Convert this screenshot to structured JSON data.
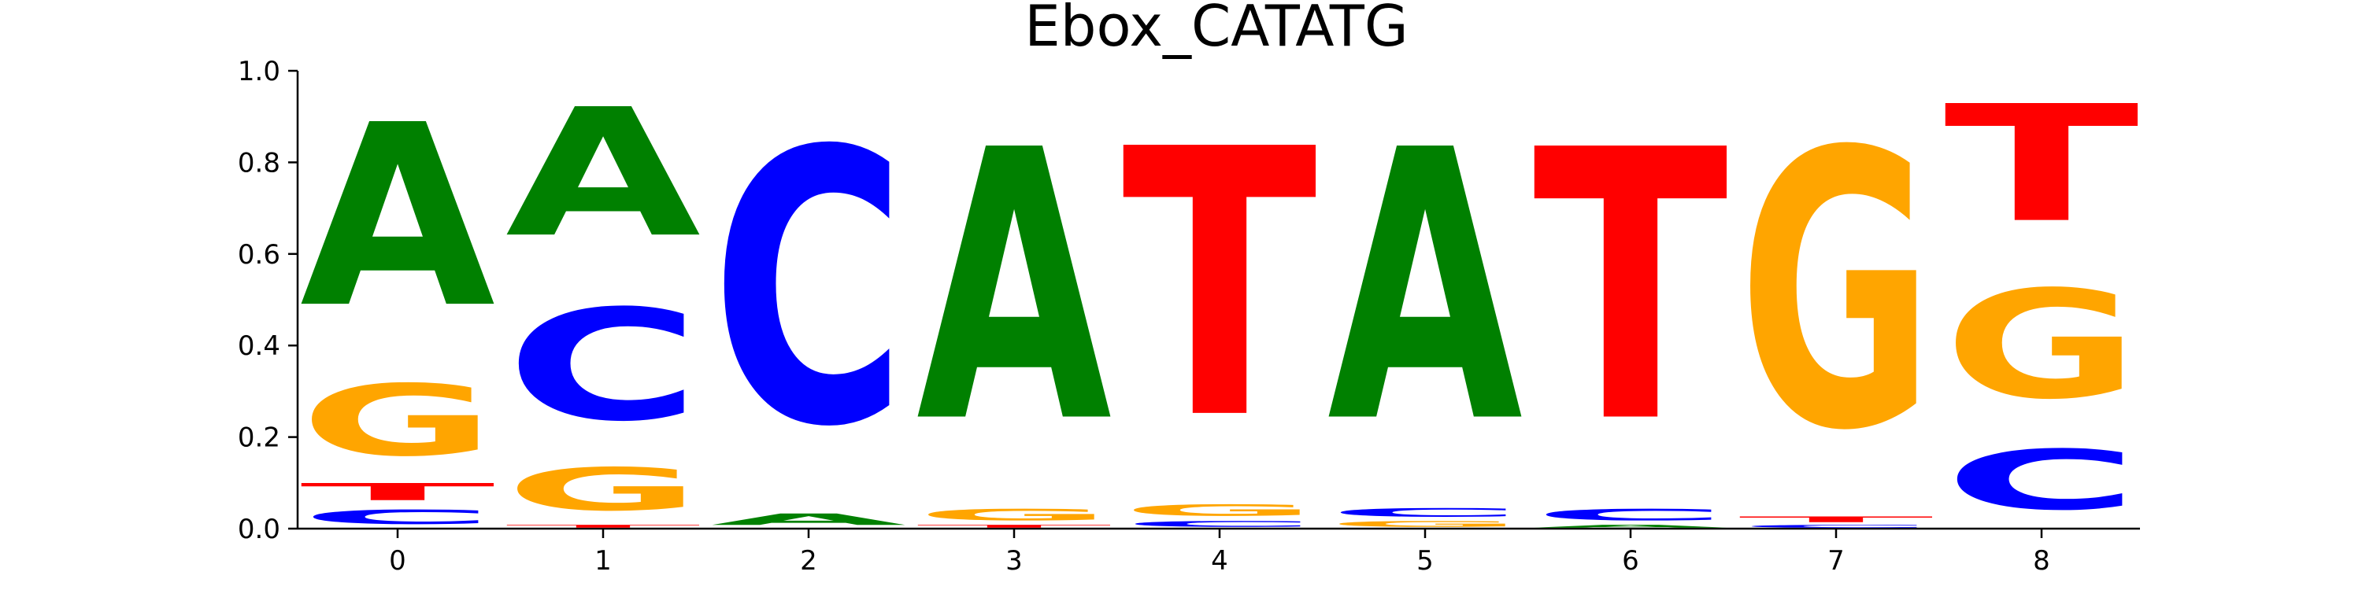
{
  "chart_data": {
    "type": "sequence-logo",
    "title": "Ebox_CATATG",
    "ylim": [
      0,
      1
    ],
    "yticks": [
      "0.0",
      "0.2",
      "0.4",
      "0.6",
      "0.8",
      "1.0"
    ],
    "xticks": [
      "0",
      "1",
      "2",
      "3",
      "4",
      "5",
      "6",
      "7",
      "8"
    ],
    "colors": {
      "A": "#008000",
      "C": "#0000ff",
      "G": "#ffa500",
      "T": "#ff0000"
    },
    "positions": [
      {
        "position": 0,
        "stack": [
          {
            "letter": "C",
            "value": 0.05
          },
          {
            "letter": "T",
            "value": 0.06
          },
          {
            "letter": "G",
            "value": 0.25
          },
          {
            "letter": "A",
            "value": 0.64
          }
        ]
      },
      {
        "position": 1,
        "stack": [
          {
            "letter": "T",
            "value": 0.01
          },
          {
            "letter": "G",
            "value": 0.15
          },
          {
            "letter": "C",
            "value": 0.39
          },
          {
            "letter": "A",
            "value": 0.45
          }
        ]
      },
      {
        "position": 2,
        "stack": [
          {
            "letter": "A",
            "value": 0.04
          },
          {
            "letter": "C",
            "value": 0.96
          }
        ]
      },
      {
        "position": 3,
        "stack": [
          {
            "letter": "T",
            "value": 0.01
          },
          {
            "letter": "G",
            "value": 0.04
          },
          {
            "letter": "A",
            "value": 0.95
          }
        ]
      },
      {
        "position": 4,
        "stack": [
          {
            "letter": "C",
            "value": 0.02
          },
          {
            "letter": "G",
            "value": 0.04
          },
          {
            "letter": "T",
            "value": 0.94
          }
        ]
      },
      {
        "position": 5,
        "stack": [
          {
            "letter": "G",
            "value": 0.02
          },
          {
            "letter": "C",
            "value": 0.03
          },
          {
            "letter": "A",
            "value": 0.95
          }
        ]
      },
      {
        "position": 6,
        "stack": [
          {
            "letter": "A",
            "value": 0.01
          },
          {
            "letter": "C",
            "value": 0.04
          },
          {
            "letter": "T",
            "value": 0.95
          }
        ]
      },
      {
        "position": 7,
        "stack": [
          {
            "letter": "C",
            "value": 0.01
          },
          {
            "letter": "T",
            "value": 0.02
          },
          {
            "letter": "G",
            "value": 0.97
          }
        ]
      },
      {
        "position": 8,
        "stack": [
          {
            "letter": "C",
            "value": 0.21
          },
          {
            "letter": "G",
            "value": 0.38
          },
          {
            "letter": "T",
            "value": 0.41
          }
        ]
      }
    ]
  }
}
